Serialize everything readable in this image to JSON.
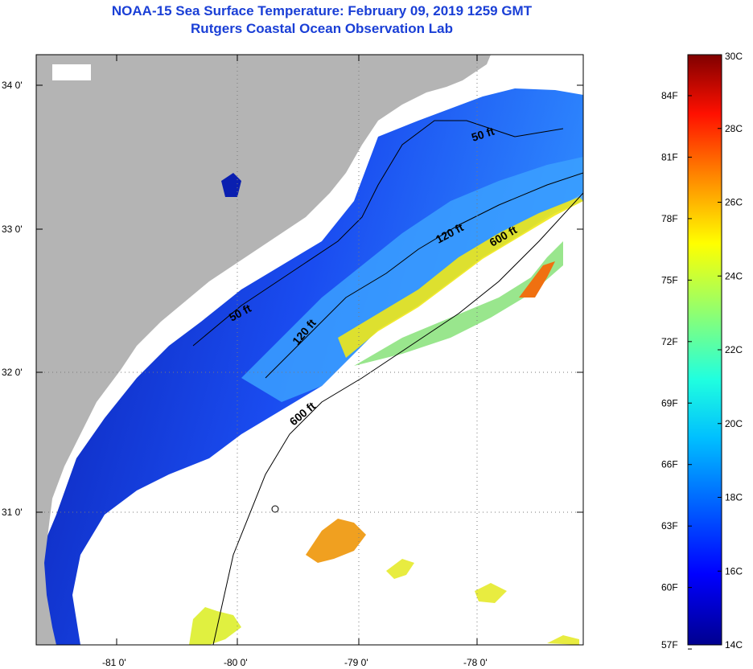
{
  "title": {
    "line1": "NOAA-15 Sea Surface Temperature:  February 09, 2019 1259 GMT",
    "line2": "Rutgers Coastal Ocean Observation Lab"
  },
  "map": {
    "lat_labels": [
      "34 0'",
      "33 0'",
      "32 0'",
      "31 0'"
    ],
    "lon_labels": [
      "-81 0'",
      "-80 0'",
      "-79 0'",
      "-78 0'"
    ],
    "contour_labels": [
      "50 ft",
      "120 ft",
      "600 ft",
      "50 ft",
      "120 ft",
      "600 ft"
    ]
  },
  "colorbar": {
    "fahrenheit": [
      "84F",
      "81F",
      "78F",
      "75F",
      "72F",
      "69F",
      "66F",
      "63F",
      "60F",
      "57F"
    ],
    "celsius": [
      "30C",
      "28C",
      "26C",
      "24C",
      "22C",
      "20C",
      "18C",
      "16C",
      "14C"
    ]
  },
  "colors": {
    "title": "#1a3fd6",
    "land": "#b4b4b4",
    "ocean_cold": "#0a1fb0",
    "ocean_mid": "#2a6cff",
    "ocean_warm": "#f0e818",
    "warm_patch": "#f0a020"
  }
}
